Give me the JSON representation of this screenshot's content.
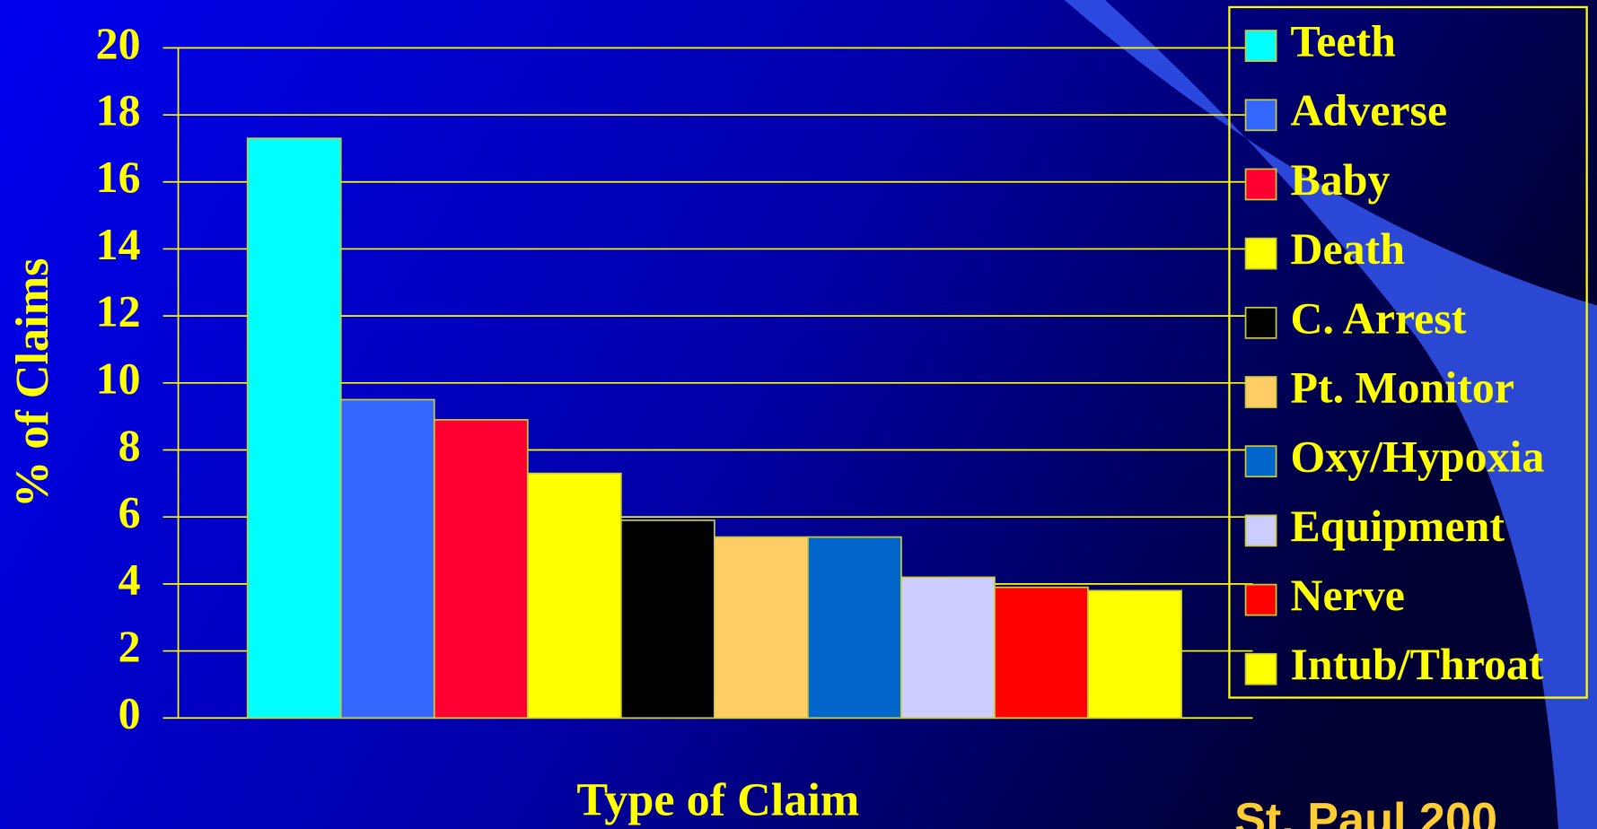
{
  "chart_data": {
    "type": "bar",
    "y_label": "% of Claims",
    "x_label": "Type of Claim",
    "annotation": "St. Paul 200",
    "ylim": [
      0,
      20
    ],
    "yticks": [
      0,
      2,
      4,
      6,
      8,
      10,
      12,
      14,
      16,
      18,
      20
    ],
    "grid": true,
    "series": [
      {
        "name": "Teeth",
        "color": "#00ffff",
        "values": [
          17.3
        ]
      },
      {
        "name": "Adverse",
        "color": "#3366ff",
        "values": [
          9.5
        ]
      },
      {
        "name": "Baby",
        "color": "#ff0033",
        "values": [
          8.9
        ]
      },
      {
        "name": "Death",
        "color": "#ffff00",
        "values": [
          7.3
        ]
      },
      {
        "name": "C. Arrest",
        "color": "#000000",
        "values": [
          5.9
        ]
      },
      {
        "name": "Pt. Monitor",
        "color": "#ffcc66",
        "values": [
          5.4
        ]
      },
      {
        "name": "Oxy/Hypoxia",
        "color": "#0066cc",
        "values": [
          5.4
        ]
      },
      {
        "name": "Equipment",
        "color": "#ccccff",
        "values": [
          4.2
        ]
      },
      {
        "name": "Nerve",
        "color": "#ff0000",
        "values": [
          3.9
        ]
      },
      {
        "name": "Intub/Throat",
        "color": "#ffff00",
        "values": [
          3.8
        ]
      }
    ]
  }
}
